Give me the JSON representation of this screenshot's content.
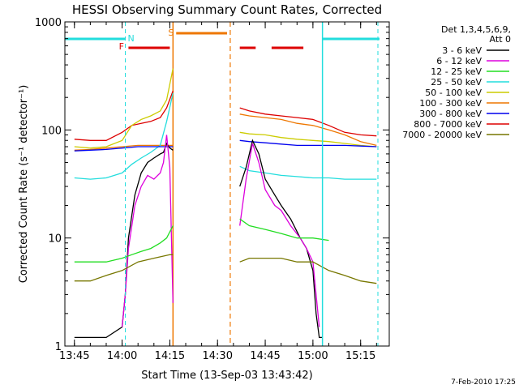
{
  "chart_data": {
    "type": "line",
    "title": "HESSI Observing Summary Count Rates, Corrected",
    "xlabel": "Start Time (13-Sep-03 13:43:42)",
    "ylabel": "Corrected Count Rate (s⁻¹ detector⁻¹)",
    "footer": "7-Feb-2010 17:25",
    "yscale": "log",
    "ylim": [
      1,
      1000
    ],
    "xlim_minutes": [
      13.7,
      15.4
    ],
    "xticks": [
      "13:45",
      "14:00",
      "14:15",
      "14:30",
      "14:45",
      "15:00",
      "15:15"
    ],
    "yticks": [
      "1",
      "10",
      "100",
      "1000"
    ],
    "legend": {
      "placement": "outside-right",
      "header": [
        "Det 1,3,4,5,6,9,",
        "Att 0"
      ],
      "entries": [
        {
          "label": "3 - 6 keV",
          "color": "#000000"
        },
        {
          "label": "6 - 12 keV",
          "color": "#dd00dd"
        },
        {
          "label": "12 - 25 keV",
          "color": "#22dd22"
        },
        {
          "label": "25 - 50 keV",
          "color": "#22dddd"
        },
        {
          "label": "50 - 100 keV",
          "color": "#cccc00"
        },
        {
          "label": "100 - 300 keV",
          "color": "#ee7700"
        },
        {
          "label": "300 - 800 keV",
          "color": "#0000ee"
        },
        {
          "label": "800 - 7000 keV",
          "color": "#dd0000"
        },
        {
          "label": "7000 - 20000 keV",
          "color": "#777700"
        }
      ]
    },
    "annotations": [
      {
        "label": "F",
        "color": "#dd0000"
      },
      {
        "label": "N",
        "color": "#22dddd"
      },
      {
        "label": "S",
        "color": "#ee7700"
      }
    ],
    "data_gap": [
      "14:16",
      "14:34"
    ],
    "series": [
      {
        "name": "800 - 7000 keV",
        "color": "#dd0000",
        "x": [
          "13:45",
          "13:50",
          "13:55",
          "14:00",
          "14:03",
          "14:06",
          "14:09",
          "14:12",
          "14:14",
          "14:16",
          "14:37",
          "14:40",
          "14:45",
          "14:50",
          "14:55",
          "15:00",
          "15:05",
          "15:10",
          "15:15",
          "15:20"
        ],
        "y": [
          82,
          80,
          80,
          95,
          110,
          115,
          120,
          130,
          160,
          230,
          160,
          150,
          140,
          135,
          130,
          125,
          110,
          95,
          90,
          88
        ]
      },
      {
        "name": "100 - 300 keV",
        "color": "#ee7700",
        "x": [
          "13:45",
          "13:50",
          "13:55",
          "14:00",
          "14:05",
          "14:10",
          "14:15",
          "14:16",
          "14:37",
          "14:40",
          "14:45",
          "14:50",
          "14:55",
          "15:00",
          "15:05",
          "15:10",
          "15:15",
          "15:20"
        ],
        "y": [
          65,
          66,
          68,
          70,
          72,
          72,
          72,
          72,
          140,
          135,
          130,
          125,
          115,
          110,
          100,
          90,
          78,
          72
        ]
      },
      {
        "name": "50 - 100 keV",
        "color": "#cccc00",
        "x": [
          "13:45",
          "13:50",
          "13:55",
          "14:00",
          "14:03",
          "14:06",
          "14:09",
          "14:12",
          "14:14",
          "14:16",
          "14:37",
          "14:40",
          "14:45",
          "14:50",
          "14:55",
          "15:00",
          "15:05",
          "15:10",
          "15:15",
          "15:20"
        ],
        "y": [
          70,
          68,
          70,
          80,
          110,
          125,
          135,
          150,
          190,
          370,
          95,
          92,
          90,
          85,
          82,
          80,
          78,
          75,
          72,
          70
        ]
      },
      {
        "name": "25 - 50 keV",
        "color": "#22dddd",
        "x": [
          "13:45",
          "13:50",
          "13:55",
          "14:00",
          "14:03",
          "14:06",
          "14:09",
          "14:12",
          "14:14",
          "14:16",
          "14:37",
          "14:40",
          "14:45",
          "14:50",
          "14:55",
          "15:00",
          "15:05",
          "15:10",
          "15:15",
          "15:20"
        ],
        "y": [
          36,
          35,
          36,
          40,
          48,
          55,
          62,
          72,
          120,
          220,
          46,
          42,
          40,
          38,
          37,
          36,
          36,
          35,
          35,
          35
        ]
      },
      {
        "name": "300 - 800 keV",
        "color": "#0000ee",
        "x": [
          "13:45",
          "13:50",
          "13:55",
          "14:00",
          "14:05",
          "14:10",
          "14:15",
          "14:16",
          "14:37",
          "14:40",
          "14:45",
          "14:50",
          "14:55",
          "15:00",
          "15:05",
          "15:10",
          "15:15",
          "15:20"
        ],
        "y": [
          64,
          65,
          66,
          68,
          70,
          70,
          70,
          70,
          80,
          78,
          76,
          74,
          72,
          72,
          72,
          72,
          71,
          70
        ]
      },
      {
        "name": "3 - 6 keV",
        "color": "#000000",
        "x": [
          "13:45",
          "13:55",
          "14:00",
          "14:01",
          "14:02",
          "14:04",
          "14:06",
          "14:08",
          "14:10",
          "14:12",
          "14:13",
          "14:14",
          "14:15",
          "14:16",
          "14:37",
          "14:39",
          "14:41",
          "14:43",
          "14:45",
          "14:48",
          "14:50",
          "14:53",
          "14:56",
          "14:58",
          "15:00",
          "15:01",
          "15:02",
          "15:03"
        ],
        "y": [
          1.2,
          1.2,
          1.5,
          3,
          10,
          25,
          40,
          50,
          55,
          60,
          62,
          75,
          68,
          65,
          30,
          45,
          80,
          60,
          35,
          25,
          20,
          15,
          10,
          8,
          5,
          2,
          1.2,
          1.2
        ]
      },
      {
        "name": "6 - 12 keV",
        "color": "#dd00dd",
        "x": [
          "14:00",
          "14:01",
          "14:02",
          "14:04",
          "14:06",
          "14:08",
          "14:10",
          "14:12",
          "14:13",
          "14:14",
          "14:15",
          "14:16",
          "14:37",
          "14:39",
          "14:41",
          "14:43",
          "14:45",
          "14:48",
          "14:50",
          "14:53",
          "14:56",
          "14:58",
          "15:00",
          "15:01",
          "15:02"
        ],
        "y": [
          1.5,
          3,
          8,
          20,
          30,
          38,
          35,
          40,
          50,
          90,
          45,
          2.5,
          13,
          35,
          75,
          50,
          28,
          20,
          18,
          13,
          10,
          8,
          6,
          3,
          1.5
        ]
      },
      {
        "name": "12 - 25 keV",
        "color": "#22dd22",
        "x": [
          "13:45",
          "13:50",
          "13:55",
          "14:00",
          "14:03",
          "14:06",
          "14:09",
          "14:12",
          "14:14",
          "14:16",
          "14:37",
          "14:40",
          "14:45",
          "14:50",
          "14:55",
          "15:00",
          "15:05"
        ],
        "y": [
          6,
          6,
          6,
          6.5,
          7,
          7.5,
          8,
          9,
          10,
          13,
          15,
          13,
          12,
          11,
          10,
          10,
          9.5
        ]
      },
      {
        "name": "7000 - 20000 keV",
        "color": "#777700",
        "x": [
          "13:45",
          "13:50",
          "13:55",
          "14:00",
          "14:05",
          "14:10",
          "14:15",
          "14:16",
          "14:37",
          "14:40",
          "14:45",
          "14:50",
          "14:55",
          "15:00",
          "15:05",
          "15:10",
          "15:15",
          "15:20"
        ],
        "y": [
          4,
          4,
          4.5,
          5,
          6,
          6.5,
          7,
          7,
          6,
          6.5,
          6.5,
          6.5,
          6,
          6,
          5,
          4.5,
          4,
          3.8
        ]
      }
    ]
  }
}
